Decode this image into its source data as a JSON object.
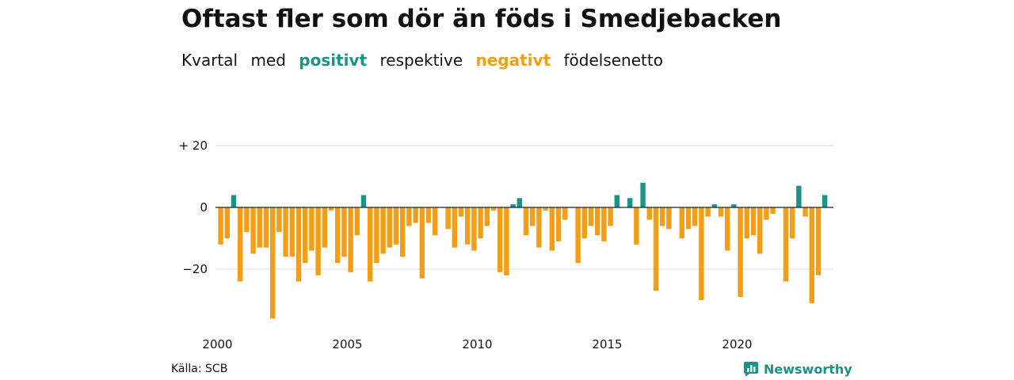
{
  "title": "Oftast fler som dör än föds i Smedjebacken",
  "subtitle": {
    "w1": "Kvartal",
    "w2": "med",
    "positive": "positivt",
    "w3": "respektive",
    "negative": "negativt",
    "w4": "födelsenetto"
  },
  "source": "Källa: SCB",
  "logo": "Newsworthy",
  "colors": {
    "positive": "#1a9488",
    "negative": "#f59e15",
    "grid": "#dddddd",
    "axis": "#222222"
  },
  "chart_data": {
    "type": "bar",
    "title": "Oftast fler som dör än föds i Smedjebacken",
    "xlabel": "",
    "ylabel": "",
    "start": "2000-Q1",
    "ylim": [
      -37,
      21
    ],
    "yticks": [
      20,
      0,
      -20
    ],
    "ytick_labels": [
      "+ 20",
      "0",
      "−20"
    ],
    "xticks": [
      2000,
      2005,
      2010,
      2015,
      2020
    ],
    "grid": "horizontal",
    "values": [
      -12,
      -10,
      4,
      -24,
      -8,
      -15,
      -13,
      -13,
      -36,
      -8,
      -16,
      -16,
      -24,
      -18,
      -14,
      -22,
      -13,
      -1,
      -18,
      -16,
      -21,
      -9,
      4,
      -24,
      -18,
      -15,
      -13,
      -12,
      -16,
      -6,
      -5,
      -23,
      -5,
      -9,
      0,
      -7,
      -13,
      -3,
      -12,
      -14,
      -10,
      -6,
      -1,
      -21,
      -22,
      1,
      3,
      -9,
      -6,
      -13,
      -1,
      -14,
      -11,
      -4,
      0,
      -18,
      -10,
      -6,
      -9,
      -11,
      -6,
      4,
      0,
      3,
      -12,
      8,
      -4,
      -27,
      -6,
      -7,
      0,
      -10,
      -7,
      -6,
      -30,
      -3,
      1,
      -3,
      -14,
      1,
      -29,
      -10,
      -9,
      -15,
      -4,
      -2,
      0,
      -24,
      -10,
      7,
      -3,
      -31,
      -22,
      4
    ]
  }
}
